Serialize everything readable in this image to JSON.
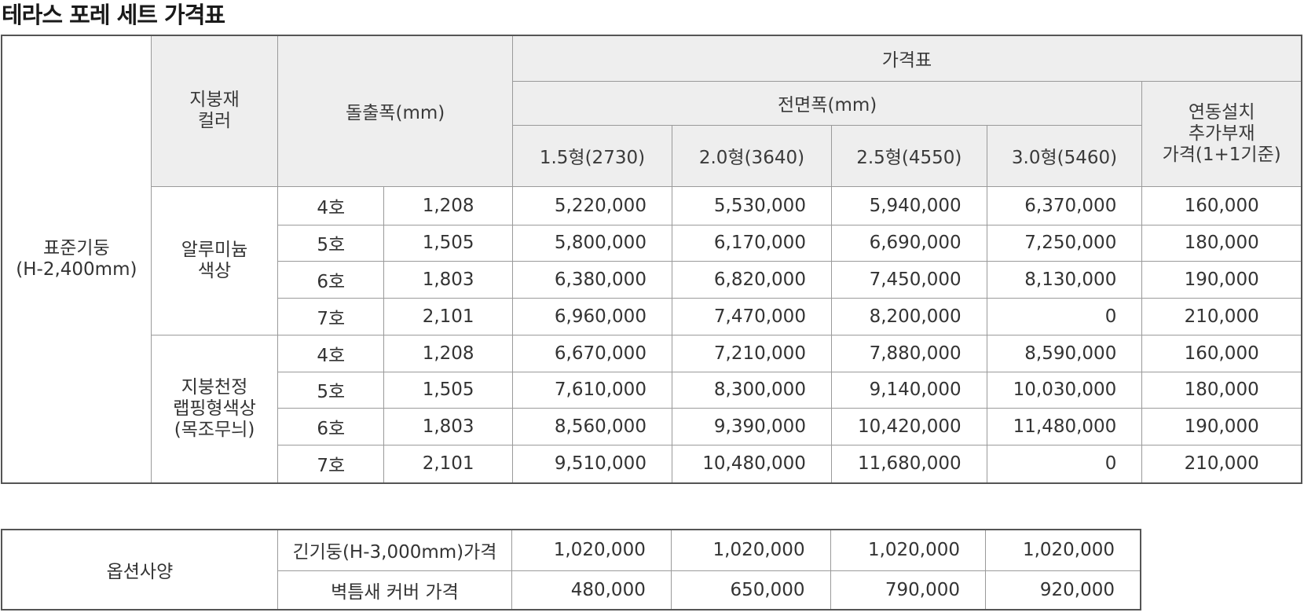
{
  "title": "테라스 포레 세트 가격표",
  "header": {
    "roof_color": [
      "지붕재",
      "컬러"
    ],
    "projection": "돌출폭(mm)",
    "price_table": "가격표",
    "front_width": "전면폭(mm)",
    "linked_install": [
      "연동설치",
      "추가부재",
      "가격(1+1기준)"
    ],
    "sizes": [
      "1.5형(2730)",
      "2.0형(3640)",
      "2.5형(4550)",
      "3.0형(5460)"
    ]
  },
  "post_type": [
    "표준기둥",
    "(H-2,400mm)"
  ],
  "groups": [
    {
      "color": [
        "알루미늄",
        "색상"
      ],
      "rows": [
        {
          "no": "4호",
          "projection": "1,208",
          "prices": [
            "5,220,000",
            "5,530,000",
            "5,940,000",
            "6,370,000"
          ],
          "linked": "160,000"
        },
        {
          "no": "5호",
          "projection": "1,505",
          "prices": [
            "5,800,000",
            "6,170,000",
            "6,690,000",
            "7,250,000"
          ],
          "linked": "180,000"
        },
        {
          "no": "6호",
          "projection": "1,803",
          "prices": [
            "6,380,000",
            "6,820,000",
            "7,450,000",
            "8,130,000"
          ],
          "linked": "190,000"
        },
        {
          "no": "7호",
          "projection": "2,101",
          "prices": [
            "6,960,000",
            "7,470,000",
            "8,200,000",
            "0"
          ],
          "linked": "210,000"
        }
      ]
    },
    {
      "color": [
        "지붕천정",
        "랩핑형색상",
        "(목조무늬)"
      ],
      "rows": [
        {
          "no": "4호",
          "projection": "1,208",
          "prices": [
            "6,670,000",
            "7,210,000",
            "7,880,000",
            "8,590,000"
          ],
          "linked": "160,000"
        },
        {
          "no": "5호",
          "projection": "1,505",
          "prices": [
            "7,610,000",
            "8,300,000",
            "9,140,000",
            "10,030,000"
          ],
          "linked": "180,000"
        },
        {
          "no": "6호",
          "projection": "1,803",
          "prices": [
            "8,560,000",
            "9,390,000",
            "10,420,000",
            "11,480,000"
          ],
          "linked": "190,000"
        },
        {
          "no": "7호",
          "projection": "2,101",
          "prices": [
            "9,510,000",
            "10,480,000",
            "11,680,000",
            "0"
          ],
          "linked": "210,000"
        }
      ]
    }
  ],
  "options": {
    "label": "옵션사양",
    "rows": [
      {
        "name": "긴기둥(H-3,000mm)가격",
        "prices": [
          "1,020,000",
          "1,020,000",
          "1,020,000",
          "1,020,000"
        ]
      },
      {
        "name": "벽틈새 커버 가격",
        "prices": [
          "480,000",
          "650,000",
          "790,000",
          "920,000"
        ]
      }
    ]
  }
}
